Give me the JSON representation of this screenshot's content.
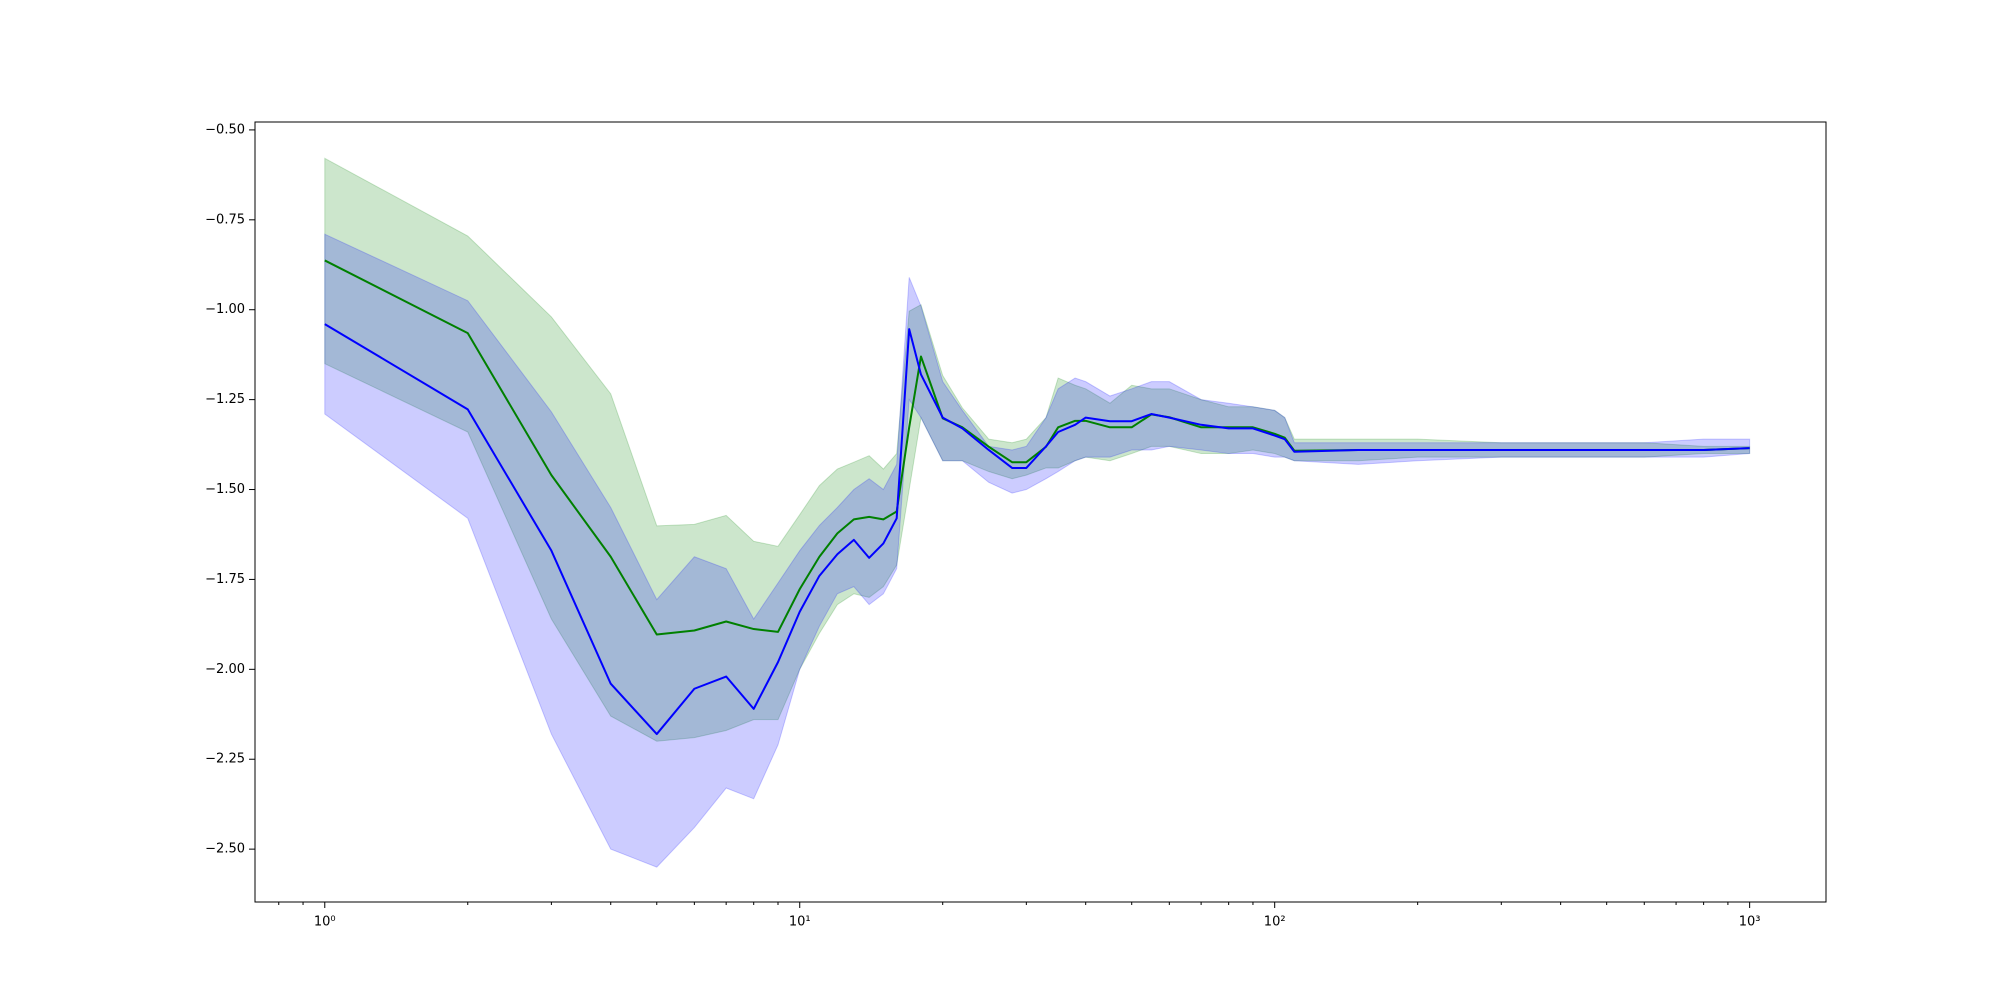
{
  "chart_data": {
    "type": "line",
    "xscale": "log",
    "x": [
      1,
      2,
      3,
      4,
      5,
      6,
      7,
      8,
      9,
      10,
      11,
      12,
      13,
      14,
      15,
      16,
      17,
      18,
      20,
      22,
      25,
      28,
      30,
      33,
      35,
      38,
      40,
      45,
      50,
      55,
      60,
      70,
      80,
      90,
      100,
      105,
      110,
      150,
      200,
      300,
      400,
      500,
      600,
      800,
      1000
    ],
    "xlim": [
      0.713,
      1448
    ],
    "ylim": [
      -2.647,
      -0.478
    ],
    "xticks": [
      {
        "value": 1,
        "label": "10⁰"
      },
      {
        "value": 10,
        "label": "10¹"
      },
      {
        "value": 100,
        "label": "10²"
      },
      {
        "value": 1000,
        "label": "10³"
      }
    ],
    "xminorticks": [
      0.8,
      0.9,
      2,
      3,
      4,
      5,
      6,
      7,
      8,
      9,
      20,
      30,
      40,
      50,
      60,
      70,
      80,
      90,
      200,
      300,
      400,
      500,
      600,
      700,
      800,
      900
    ],
    "yticks": [
      {
        "value": -0.5,
        "label": "−0.50"
      },
      {
        "value": -0.75,
        "label": "−0.75"
      },
      {
        "value": -1.0,
        "label": "−1.00"
      },
      {
        "value": -1.25,
        "label": "−1.25"
      },
      {
        "value": -1.5,
        "label": "−1.50"
      },
      {
        "value": -1.75,
        "label": "−1.75"
      },
      {
        "value": -2.0,
        "label": "−2.00"
      },
      {
        "value": -2.25,
        "label": "−2.25"
      },
      {
        "value": -2.5,
        "label": "−2.50"
      }
    ],
    "series": [
      {
        "color": "#008000",
        "values": [
          -0.863,
          -1.065,
          -1.46,
          -1.687,
          -1.903,
          -1.892,
          -1.867,
          -1.888,
          -1.896,
          -1.777,
          -1.687,
          -1.622,
          -1.583,
          -1.576,
          -1.583,
          -1.561,
          -1.327,
          -1.13,
          -1.302,
          -1.327,
          -1.381,
          -1.424,
          -1.424,
          -1.381,
          -1.327,
          -1.309,
          -1.309,
          -1.327,
          -1.327,
          -1.291,
          -1.299,
          -1.327,
          -1.327,
          -1.327,
          -1.345,
          -1.356,
          -1.392,
          -1.39,
          -1.39,
          -1.39,
          -1.39,
          -1.39,
          -1.39,
          -1.39,
          -1.385
        ],
        "upper": [
          -0.579,
          -0.795,
          -1.02,
          -1.234,
          -1.601,
          -1.597,
          -1.572,
          -1.644,
          -1.658,
          -1.57,
          -1.489,
          -1.443,
          -1.424,
          -1.406,
          -1.443,
          -1.4,
          -1.004,
          -0.986,
          -1.183,
          -1.273,
          -1.36,
          -1.37,
          -1.36,
          -1.3,
          -1.19,
          -1.21,
          -1.22,
          -1.26,
          -1.21,
          -1.22,
          -1.22,
          -1.25,
          -1.27,
          -1.27,
          -1.28,
          -1.3,
          -1.36,
          -1.36,
          -1.36,
          -1.37,
          -1.37,
          -1.37,
          -1.37,
          -1.38,
          -1.38
        ],
        "lower": [
          -1.15,
          -1.34,
          -1.86,
          -2.13,
          -2.2,
          -2.19,
          -2.17,
          -2.14,
          -2.14,
          -2.0,
          -1.9,
          -1.82,
          -1.79,
          -1.8,
          -1.77,
          -1.71,
          -1.5,
          -1.3,
          -1.42,
          -1.42,
          -1.45,
          -1.47,
          -1.46,
          -1.44,
          -1.44,
          -1.42,
          -1.41,
          -1.42,
          -1.4,
          -1.38,
          -1.38,
          -1.4,
          -1.4,
          -1.39,
          -1.4,
          -1.41,
          -1.42,
          -1.42,
          -1.41,
          -1.41,
          -1.41,
          -1.41,
          -1.41,
          -1.4,
          -1.4
        ]
      },
      {
        "color": "#0000ff",
        "values": [
          -1.04,
          -1.277,
          -1.67,
          -2.04,
          -2.18,
          -2.054,
          -2.02,
          -2.11,
          -1.98,
          -1.84,
          -1.74,
          -1.68,
          -1.64,
          -1.69,
          -1.65,
          -1.58,
          -1.054,
          -1.18,
          -1.3,
          -1.33,
          -1.39,
          -1.44,
          -1.44,
          -1.38,
          -1.34,
          -1.32,
          -1.3,
          -1.31,
          -1.31,
          -1.29,
          -1.3,
          -1.32,
          -1.33,
          -1.33,
          -1.35,
          -1.36,
          -1.395,
          -1.39,
          -1.39,
          -1.39,
          -1.39,
          -1.39,
          -1.39,
          -1.39,
          -1.385
        ],
        "upper": [
          -0.79,
          -0.975,
          -1.284,
          -1.55,
          -1.806,
          -1.687,
          -1.72,
          -1.86,
          -1.76,
          -1.67,
          -1.6,
          -1.55,
          -1.5,
          -1.47,
          -1.5,
          -1.43,
          -0.91,
          -0.99,
          -1.2,
          -1.28,
          -1.38,
          -1.39,
          -1.38,
          -1.3,
          -1.22,
          -1.19,
          -1.2,
          -1.24,
          -1.22,
          -1.2,
          -1.2,
          -1.25,
          -1.26,
          -1.27,
          -1.28,
          -1.3,
          -1.37,
          -1.37,
          -1.37,
          -1.37,
          -1.37,
          -1.37,
          -1.37,
          -1.36,
          -1.36
        ],
        "lower": [
          -1.29,
          -1.58,
          -2.18,
          -2.5,
          -2.55,
          -2.44,
          -2.33,
          -2.36,
          -2.21,
          -2.0,
          -1.88,
          -1.79,
          -1.77,
          -1.82,
          -1.79,
          -1.72,
          -1.25,
          -1.3,
          -1.42,
          -1.42,
          -1.48,
          -1.51,
          -1.5,
          -1.47,
          -1.45,
          -1.42,
          -1.41,
          -1.41,
          -1.39,
          -1.39,
          -1.38,
          -1.39,
          -1.4,
          -1.4,
          -1.41,
          -1.41,
          -1.42,
          -1.43,
          -1.42,
          -1.41,
          -1.41,
          -1.41,
          -1.41,
          -1.41,
          -1.4
        ]
      }
    ]
  }
}
